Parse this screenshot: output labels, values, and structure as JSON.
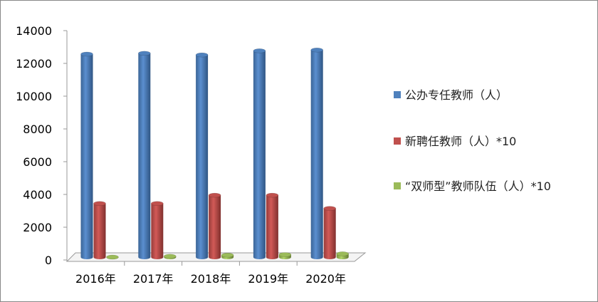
{
  "chart_data": {
    "type": "bar",
    "style": "3d-cylinder",
    "categories": [
      "2016年",
      "2017年",
      "2018年",
      "2019年",
      "2020年"
    ],
    "series": [
      {
        "name": "公办专任教师（人）",
        "color": "#4f81bd",
        "values": [
          12300,
          12350,
          12250,
          12500,
          12550
        ]
      },
      {
        "name": "新聘任教师（人）*10",
        "color": "#c0504d",
        "values": [
          3250,
          3250,
          3750,
          3750,
          2950
        ]
      },
      {
        "name": "“双师型”教师队伍（人）*10",
        "color": "#9bbb59",
        "values": [
          0,
          50,
          120,
          150,
          200
        ]
      }
    ],
    "yticks": [
      "0",
      "2000",
      "4000",
      "6000",
      "8000",
      "10000",
      "12000",
      "14000"
    ],
    "ylim": [
      0,
      14000
    ],
    "grid": false,
    "legend": "right"
  }
}
